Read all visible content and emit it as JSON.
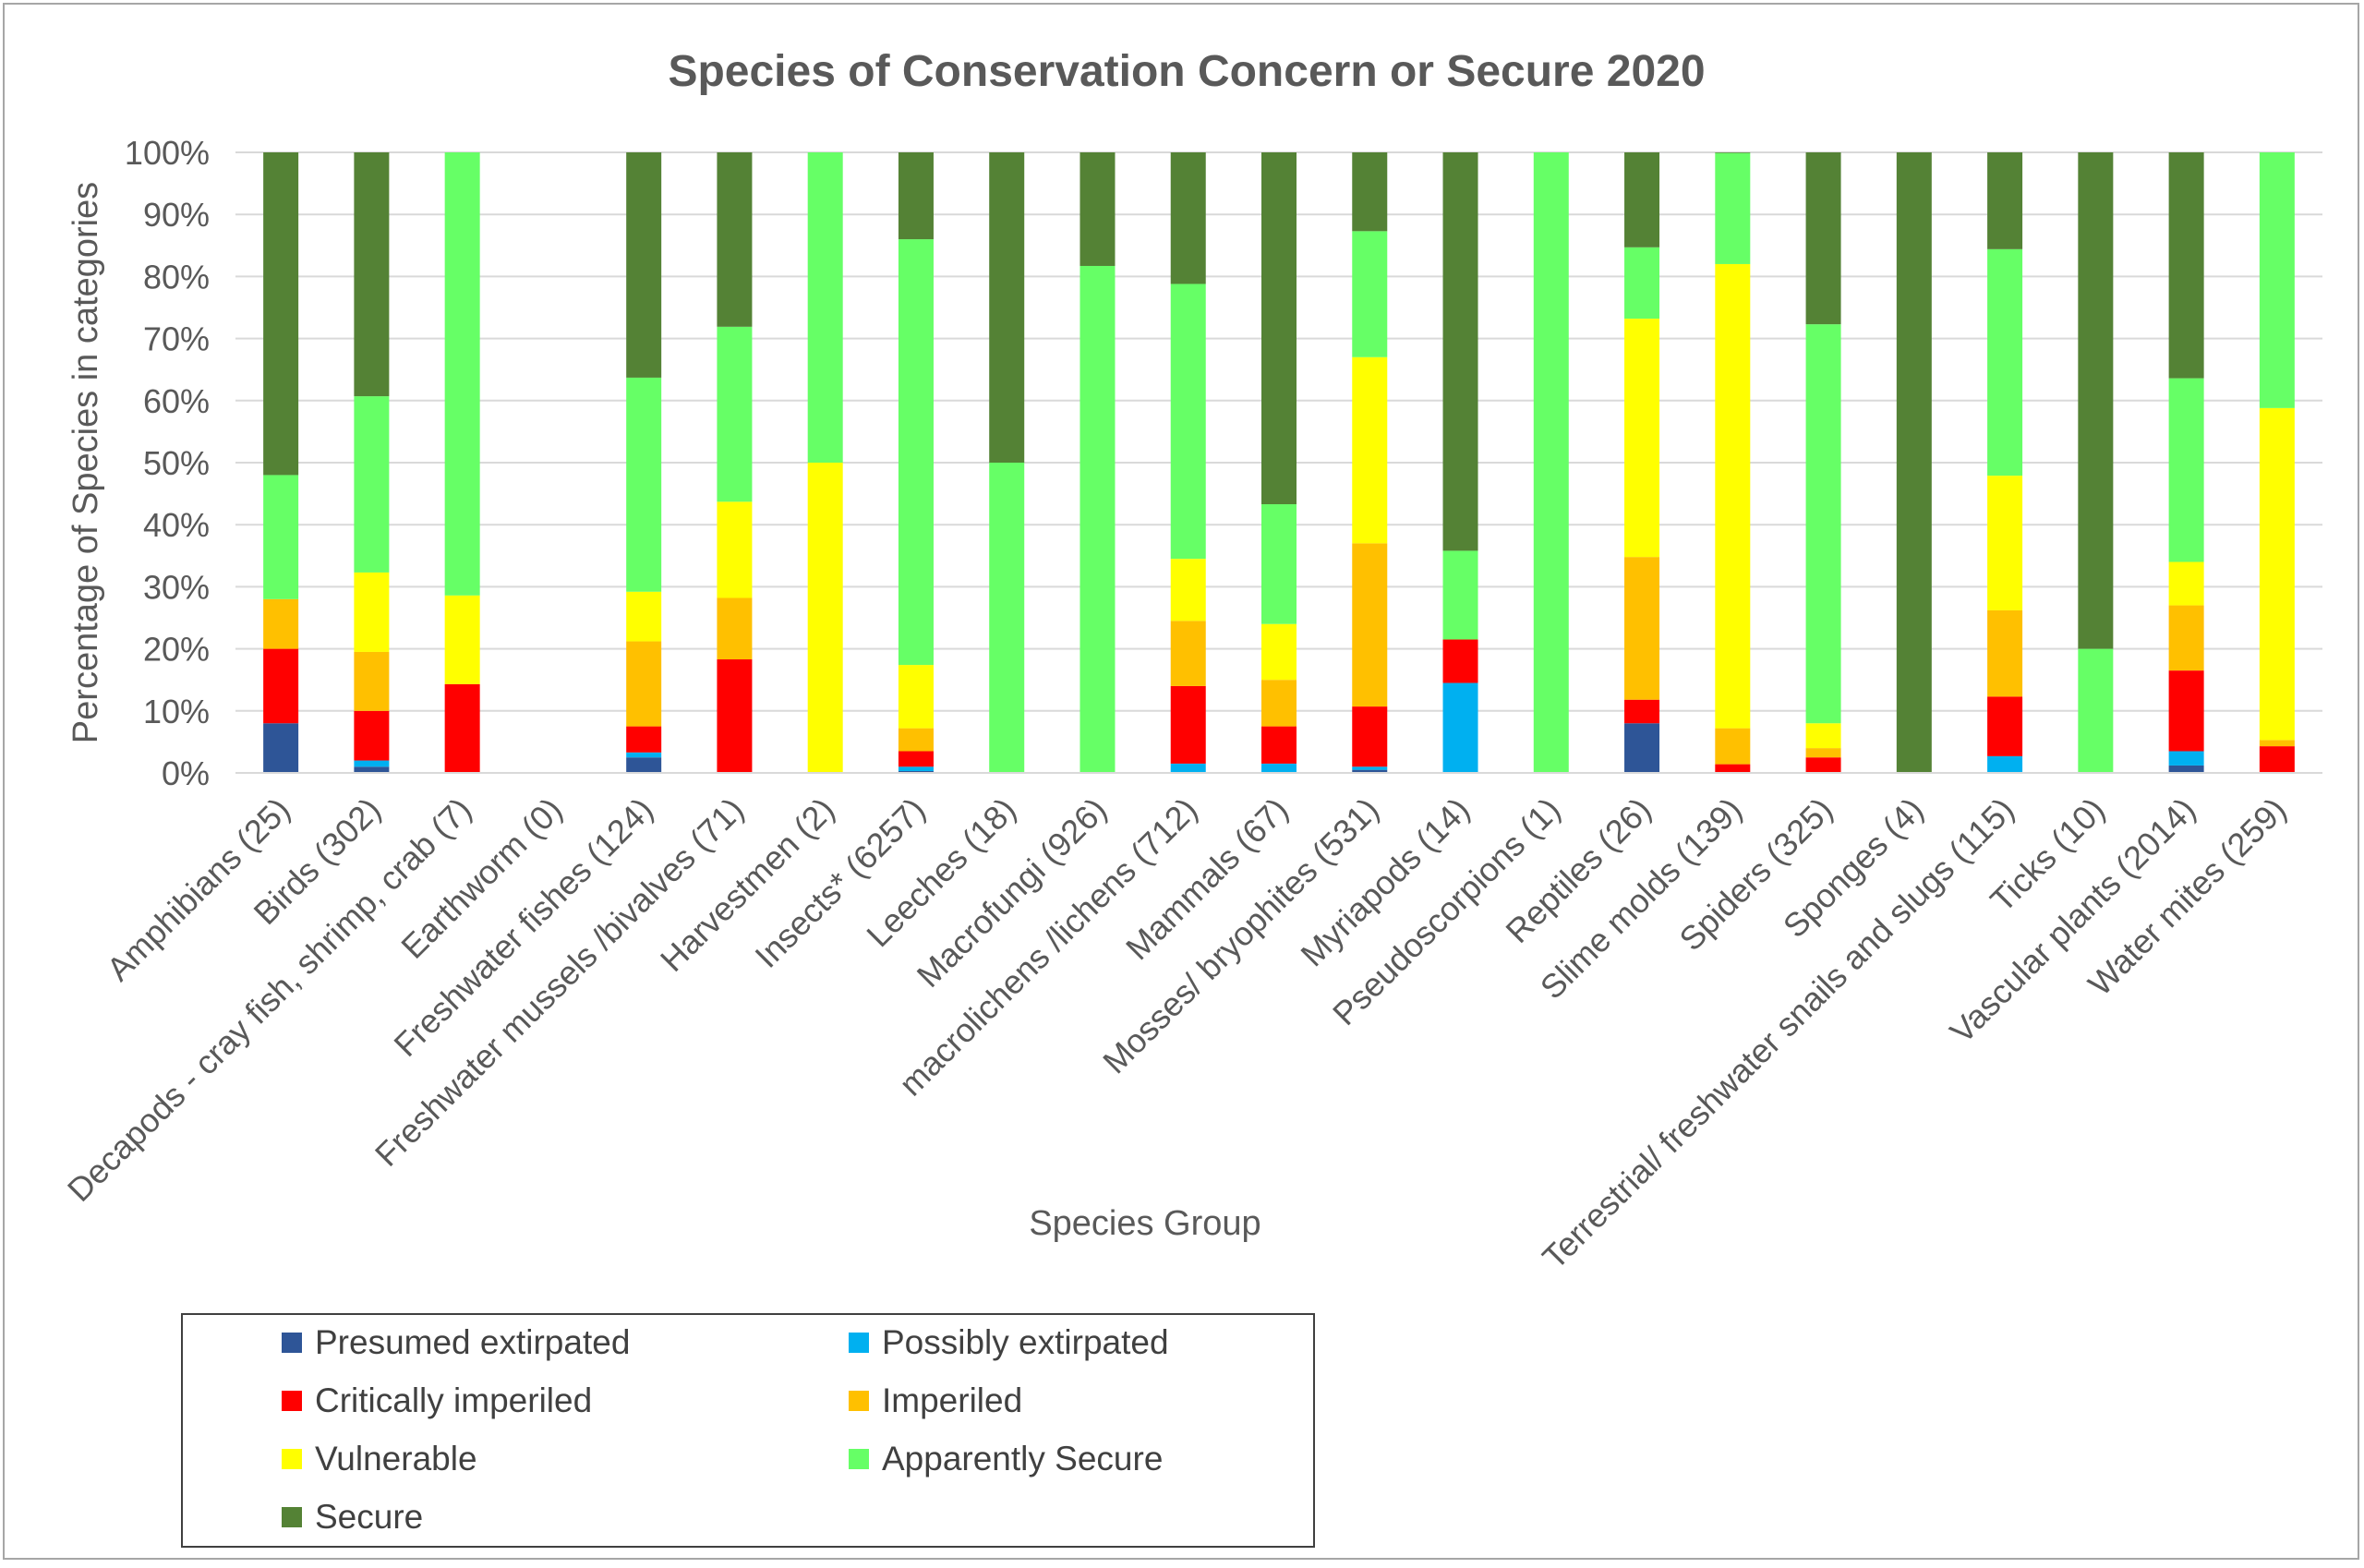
{
  "chart_data": {
    "type": "bar",
    "stacked": true,
    "percent_stacked": true,
    "title": "Species of Conservation Concern or Secure 2020",
    "xlabel": "Species Group",
    "ylabel": "Percentage of Species in categories",
    "ylim": [
      0,
      100
    ],
    "yticks": [
      "0%",
      "10%",
      "20%",
      "30%",
      "40%",
      "50%",
      "60%",
      "70%",
      "80%",
      "90%",
      "100%"
    ],
    "grid": true,
    "legend_position": "bottom-left",
    "categories": [
      "Amphibians (25)",
      "Birds (302)",
      "Decapods - cray fish, shrimp, crab (7)",
      "Earthworm (0)",
      "Freshwater fishes (124)",
      "Freshwater mussels /bivalves (71)",
      "Harvestmen (2)",
      "Insects* (6257)",
      "Leeches (18)",
      "Macrofungi (926)",
      "macrolichens /lichens (712)",
      "Mammals (67)",
      "Mosses/ bryophites (531)",
      "Myriapods (14)",
      "Pseudoscorpions (1)",
      "Reptiles (26)",
      "Slime molds (139)",
      "Spiders (325)",
      "Sponges (4)",
      "Terrestrial/ freshwater snails and slugs (115)",
      "Ticks (10)",
      "Vascular plants (2014)",
      "Water mites (259)"
    ],
    "series": [
      {
        "name": "Presumed extirpated",
        "color": "#2e5597",
        "values": [
          8,
          1,
          0,
          0,
          2.5,
          0,
          0,
          0.3,
          0,
          0,
          0,
          0,
          0.5,
          0,
          0,
          8,
          0,
          0,
          0,
          0,
          0,
          1.2,
          0
        ]
      },
      {
        "name": "Possibly extirpated",
        "color": "#00b0f0",
        "values": [
          0,
          1,
          0,
          0,
          0.8,
          0,
          0,
          0.7,
          0,
          0,
          1.5,
          1.5,
          0.5,
          14.5,
          0,
          0,
          0,
          0,
          0,
          2.7,
          0,
          2.3,
          0
        ]
      },
      {
        "name": "Critically imperiled",
        "color": "#ff0000",
        "values": [
          12,
          8,
          14.3,
          0,
          4.2,
          18.3,
          0,
          2.5,
          0,
          0,
          12.5,
          6,
          9.7,
          7,
          0,
          3.8,
          1.4,
          2.5,
          0,
          9.6,
          0,
          13,
          4.3
        ]
      },
      {
        "name": "Imperiled",
        "color": "#ffc000",
        "values": [
          8,
          9.5,
          0,
          0,
          13.7,
          9.9,
          0,
          3.7,
          0,
          0,
          10.5,
          7.5,
          26.3,
          0,
          0,
          23,
          5.8,
          1.5,
          0,
          13.9,
          0,
          10.5,
          1
        ]
      },
      {
        "name": "Vulnerable",
        "color": "#ffff00",
        "values": [
          0,
          12.8,
          14.3,
          0,
          8,
          15.5,
          50,
          10.2,
          0,
          0,
          10,
          9,
          30,
          0,
          0,
          38.4,
          74.8,
          4,
          0,
          21.7,
          0,
          7,
          53.5
        ]
      },
      {
        "name": "Apparently Secure",
        "color": "#66ff66",
        "values": [
          20,
          28.4,
          71.4,
          0,
          34.5,
          28.2,
          50,
          68.6,
          50,
          81.7,
          44.3,
          19.3,
          20.3,
          14.3,
          100,
          11.5,
          17.9,
          64.3,
          0,
          36.5,
          20,
          29.6,
          41.2
        ]
      },
      {
        "name": "Secure",
        "color": "#548235",
        "values": [
          52,
          39.3,
          0,
          0,
          36.3,
          28.1,
          0,
          14,
          50,
          18.3,
          21.2,
          56.7,
          12.7,
          64.2,
          0,
          15.3,
          0.1,
          27.7,
          100,
          15.6,
          80,
          36.4,
          0
        ]
      }
    ]
  }
}
